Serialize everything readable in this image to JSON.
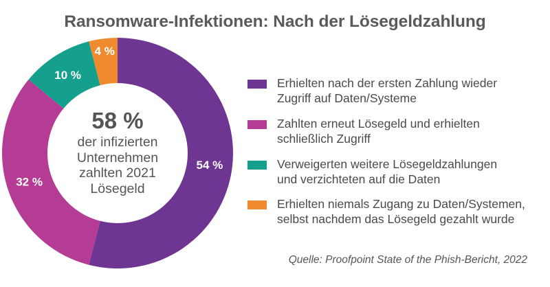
{
  "chart_data": {
    "type": "pie",
    "donut": true,
    "title": "Ransomware-Infektionen: Nach der Lösegeldzahlung",
    "center": {
      "value": "58 %",
      "text": "der infizierten\nUnternehmen\nzahlten 2021\nLösegeld"
    },
    "slices": [
      {
        "label": "Erhielten nach der ersten Zahlung wieder\nZugriff auf Daten/Systeme",
        "value": 54,
        "value_label": "54 %",
        "color": "#6e3592"
      },
      {
        "label": "Zahlten erneut Lösegeld und erhielten\nschließlich Zugriff",
        "value": 32,
        "value_label": "32 %",
        "color": "#b53c94"
      },
      {
        "label": "Verweigerten weitere Lösegeldzahlungen\nund verzichteten auf die Daten",
        "value": 10,
        "value_label": "10 %",
        "color": "#15a08d"
      },
      {
        "label": "Erhielten niemals Zugang zu Daten/Systemen,\nselbst nachdem das Lösegeld gezahlt wurde",
        "value": 4,
        "value_label": "4 %",
        "color": "#f08a2e"
      }
    ],
    "legend_position": "right",
    "source": "Quelle: Proofpoint State of the Phish-Bericht, 2022"
  }
}
